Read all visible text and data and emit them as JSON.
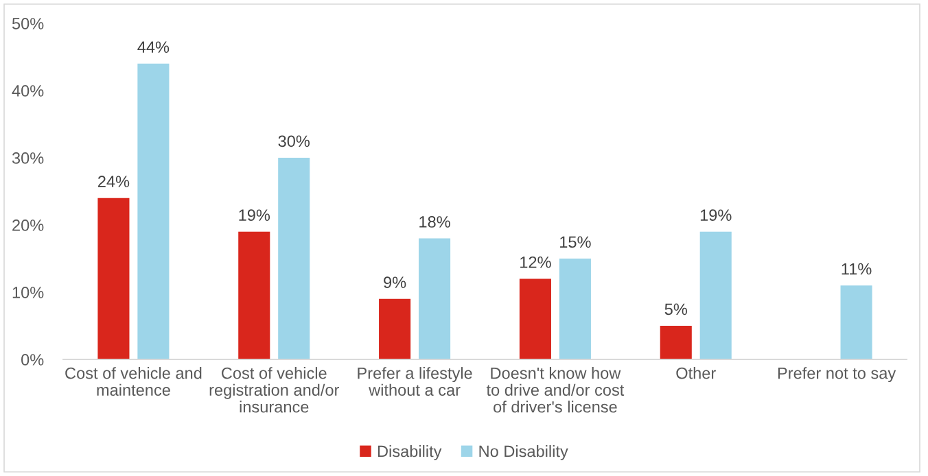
{
  "chart_data": {
    "type": "bar",
    "categories": [
      "Cost of vehicle and\nmaintence",
      "Cost of vehicle\nregistration and/or\ninsurance",
      "Prefer a lifestyle\nwithout a car",
      "Doesn't know how\nto drive and/or cost\nof driver's license",
      "Other",
      "Prefer not to say"
    ],
    "series": [
      {
        "name": "Disability",
        "color": "#d9261c",
        "values": [
          24,
          19,
          9,
          12,
          5,
          null
        ],
        "value_labels": [
          "24%",
          "19%",
          "9%",
          "12%",
          "5%",
          null
        ]
      },
      {
        "name": "No Disability",
        "color": "#9dd5e9",
        "values": [
          44,
          30,
          18,
          15,
          19,
          11
        ],
        "value_labels": [
          "44%",
          "30%",
          "18%",
          "15%",
          "19%",
          "11%"
        ]
      }
    ],
    "ylim": [
      0,
      50
    ],
    "yticks": [
      {
        "value": 0,
        "label": "0%"
      },
      {
        "value": 10,
        "label": "10%"
      },
      {
        "value": 20,
        "label": "20%"
      },
      {
        "value": 30,
        "label": "30%"
      },
      {
        "value": 40,
        "label": "40%"
      },
      {
        "value": 50,
        "label": "50%"
      }
    ],
    "grid": false,
    "legend": "bottom"
  }
}
